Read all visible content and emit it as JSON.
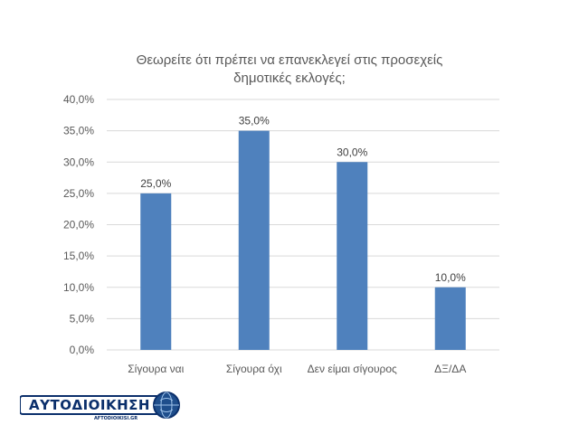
{
  "title_lines": [
    "Θεωρείτε ότι πρέπει να επανεκλεγεί στις προσεχείς",
    "δημοτικές εκλογές;"
  ],
  "chart_data": {
    "type": "bar",
    "title": "Θεωρείτε ότι πρέπει να επανεκλεγεί στις προσεχείς δημοτικές εκλογές;",
    "categories": [
      "Σίγουρα ναι",
      "Σίγουρα όχι",
      "Δεν είμαι σίγουρος",
      "ΔΞ/ΔΑ"
    ],
    "values": [
      25.0,
      35.0,
      30.0,
      10.0
    ],
    "data_labels": [
      "25,0%",
      "35,0%",
      "30,0%",
      "10,0%"
    ],
    "ylim": [
      0,
      40
    ],
    "yticks": [
      0,
      5,
      10,
      15,
      20,
      25,
      30,
      35,
      40
    ],
    "ytick_labels": [
      "0,0%",
      "5,0%",
      "10,0%",
      "15,0%",
      "20,0%",
      "25,0%",
      "30,0%",
      "35,0%",
      "40,0%"
    ],
    "xlabel": "",
    "ylabel": "",
    "grid": true,
    "bar_color": "#4f81bd"
  },
  "logo": {
    "name": "ΑΥΤΟΔΙΟΙΚΗΣΗ",
    "subtext": "AFTODIOIKISI.GR",
    "color": "#0b2f6b"
  }
}
